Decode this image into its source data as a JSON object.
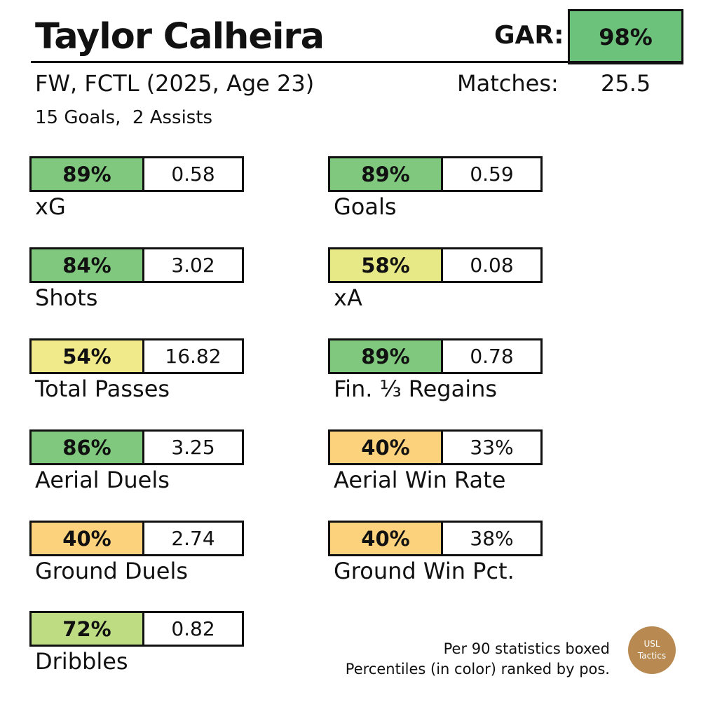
{
  "header": {
    "player_name": "Taylor Calheira",
    "gar_label": "GAR:",
    "gar_value": "98%",
    "gar_color": "#6cc27a",
    "subtitle": "FW, FCTL (2025, Age 23)",
    "matches_label": "Matches:",
    "matches_value": "25.5",
    "goals_assists": "15 Goals,  2 Assists"
  },
  "stats": [
    {
      "label": "xG",
      "percentile": "89%",
      "value": "0.58",
      "color": "#7fc87e"
    },
    {
      "label": "Goals",
      "percentile": "89%",
      "value": "0.59",
      "color": "#7fc87e"
    },
    {
      "label": "Shots",
      "percentile": "84%",
      "value": "3.02",
      "color": "#7fc87e"
    },
    {
      "label": "xA",
      "percentile": "58%",
      "value": "0.08",
      "color": "#e7e886"
    },
    {
      "label": "Total Passes",
      "percentile": "54%",
      "value": "16.82",
      "color": "#f0ea8a"
    },
    {
      "label": "Fin. ⅓ Regains",
      "percentile": "89%",
      "value": "0.78",
      "color": "#7fc87e"
    },
    {
      "label": "Aerial Duels",
      "percentile": "86%",
      "value": "3.25",
      "color": "#7fc87e"
    },
    {
      "label": "Aerial Win Rate",
      "percentile": "40%",
      "value": "33%",
      "color": "#fcd27d"
    },
    {
      "label": "Ground Duels",
      "percentile": "40%",
      "value": "2.74",
      "color": "#fcd27d"
    },
    {
      "label": "Ground Win Pct.",
      "percentile": "40%",
      "value": "38%",
      "color": "#fcd27d"
    },
    {
      "label": "Dribbles",
      "percentile": "72%",
      "value": "0.82",
      "color": "#bedc82"
    }
  ],
  "footnote": {
    "line1": "Per 90 statistics boxed",
    "line2": "Percentiles (in color) ranked by pos."
  },
  "logo": {
    "line1": "USL",
    "line2": "Tactics",
    "color": "#b88a52"
  }
}
